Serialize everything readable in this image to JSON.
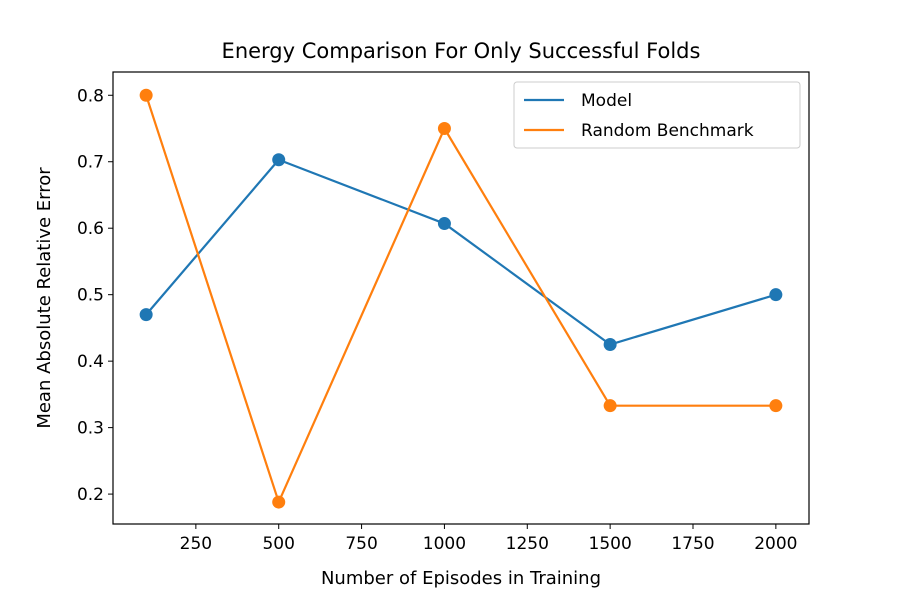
{
  "chart_data": {
    "type": "line",
    "title": "Energy Comparison For Only Successful Folds",
    "xlabel": "Number of Episodes in Training",
    "ylabel": "Mean Absolute Relative Error",
    "xlim": [
      0,
      2100
    ],
    "ylim": [
      0.155,
      0.835
    ],
    "xticks": [
      250,
      500,
      750,
      1000,
      1250,
      1500,
      1750,
      2000
    ],
    "xtick_labels": [
      "250",
      "500",
      "750",
      "1000",
      "1250",
      "1500",
      "1750",
      "2000"
    ],
    "yticks": [
      0.2,
      0.3,
      0.4,
      0.5,
      0.6,
      0.7,
      0.8
    ],
    "ytick_labels": [
      "0.2",
      "0.3",
      "0.4",
      "0.5",
      "0.6",
      "0.7",
      "0.8"
    ],
    "grid": false,
    "legend_position": "top-right",
    "x": [
      100,
      500,
      1000,
      1500,
      2000
    ],
    "series": [
      {
        "name": "Model",
        "color": "#1f77b4",
        "values": [
          0.47,
          0.703,
          0.607,
          0.425,
          0.5
        ]
      },
      {
        "name": "Random Benchmark",
        "color": "#ff7f0e",
        "values": [
          0.8,
          0.188,
          0.75,
          0.333,
          0.333
        ]
      }
    ]
  }
}
